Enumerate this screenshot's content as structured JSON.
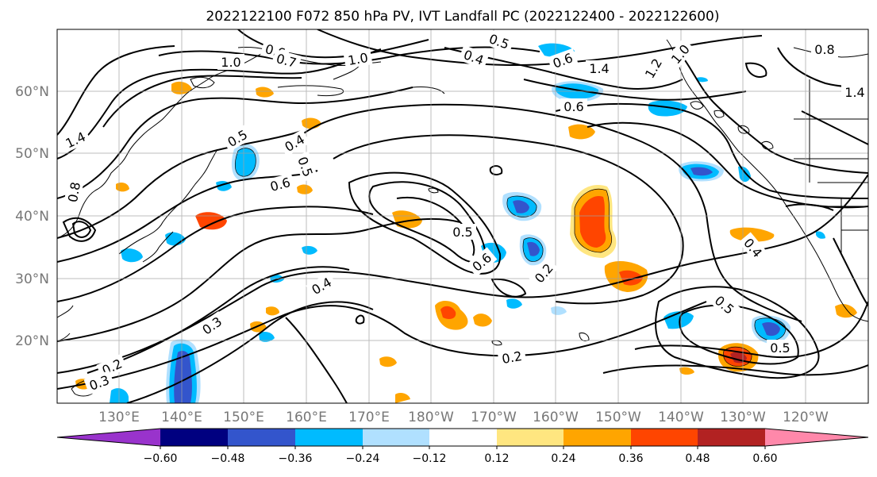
{
  "title": "2022122100 F072 850 hPa PV, IVT Landfall PC (2022122400 - 2022122600)",
  "lat_labels": [
    "60°N",
    "50°N",
    "40°N",
    "30°N",
    "20°N"
  ],
  "lon_labels": [
    "130°E",
    "140°E",
    "150°E",
    "160°E",
    "170°E",
    "180°W",
    "170°W",
    "160°W",
    "150°W",
    "140°W",
    "130°W",
    "120°W"
  ],
  "colorbar": {
    "colors": [
      "#9933cc",
      "#000080",
      "#3355cc",
      "#00bbff",
      "#b0e0ff",
      "#ffffff",
      "#ffe680",
      "#ffa500",
      "#ff4500",
      "#b22222",
      "#ff88aa"
    ],
    "tick_labels": [
      "−0.60",
      "−0.48",
      "−0.36",
      "−0.24",
      "−0.12",
      "0.12",
      "0.24",
      "0.36",
      "0.48",
      "0.60"
    ]
  },
  "contour_labels": [
    "1.0",
    "0.6",
    "0.7",
    "1.0",
    "0.5",
    "0.4",
    "0.6",
    "1.4",
    "1.2",
    "1.0",
    "0.8",
    "1.4",
    "1.4",
    "0.5",
    "0.4",
    "0.5",
    "0.6",
    "0.5",
    "0.6",
    "0.2",
    "0.4",
    "0.3",
    "0.2",
    "0.3",
    "0.2",
    "0.4",
    "0.5",
    "0.5",
    "0.8",
    "0.6"
  ]
}
